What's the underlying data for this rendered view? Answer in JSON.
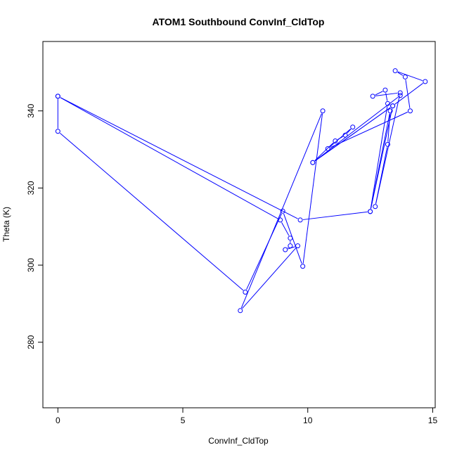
{
  "chart_data": {
    "type": "line",
    "title": "ATOM1 Southbound ConvInf_CldTop",
    "xlabel": "ConvInf_CldTop",
    "ylabel": "Theta (K)",
    "xlim": [
      -0.6,
      15.1
    ],
    "ylim": [
      263,
      358
    ],
    "xticks": [
      0,
      5,
      10,
      15
    ],
    "yticks": [
      280,
      300,
      320,
      340
    ],
    "grid": false,
    "color": "#0000ff",
    "markers": "open-circle",
    "series": [
      {
        "points": [
          [
            0.0,
            343.8
          ],
          [
            0.0,
            334.7
          ],
          [
            7.5,
            293.0
          ],
          [
            9.0,
            314.0
          ],
          [
            9.8,
            299.7
          ],
          [
            10.6,
            340.0
          ],
          [
            7.3,
            288.2
          ],
          [
            9.6,
            305.0
          ],
          [
            9.1,
            304.0
          ],
          [
            9.3,
            305.0
          ],
          [
            9.3,
            307.0
          ],
          [
            8.9,
            311.7
          ],
          [
            0.0,
            343.8
          ],
          [
            9.7,
            311.7
          ],
          [
            12.5,
            313.9
          ],
          [
            13.3,
            340.0
          ],
          [
            13.2,
            331.3
          ],
          [
            12.7,
            315.2
          ],
          [
            13.7,
            344.7
          ],
          [
            12.6,
            343.8
          ],
          [
            13.1,
            345.4
          ],
          [
            13.2,
            341.9
          ],
          [
            12.5,
            313.9
          ],
          [
            13.4,
            341.3
          ],
          [
            10.2,
            326.6
          ],
          [
            11.1,
            332.2
          ],
          [
            11.5,
            333.7
          ],
          [
            11.8,
            335.8
          ],
          [
            10.8,
            330.2
          ],
          [
            14.1,
            340.0
          ],
          [
            13.9,
            348.8
          ],
          [
            13.5,
            350.4
          ],
          [
            14.7,
            347.6
          ],
          [
            13.4,
            341.3
          ],
          [
            10.2,
            326.6
          ],
          [
            13.7,
            344.0
          ]
        ]
      }
    ]
  }
}
